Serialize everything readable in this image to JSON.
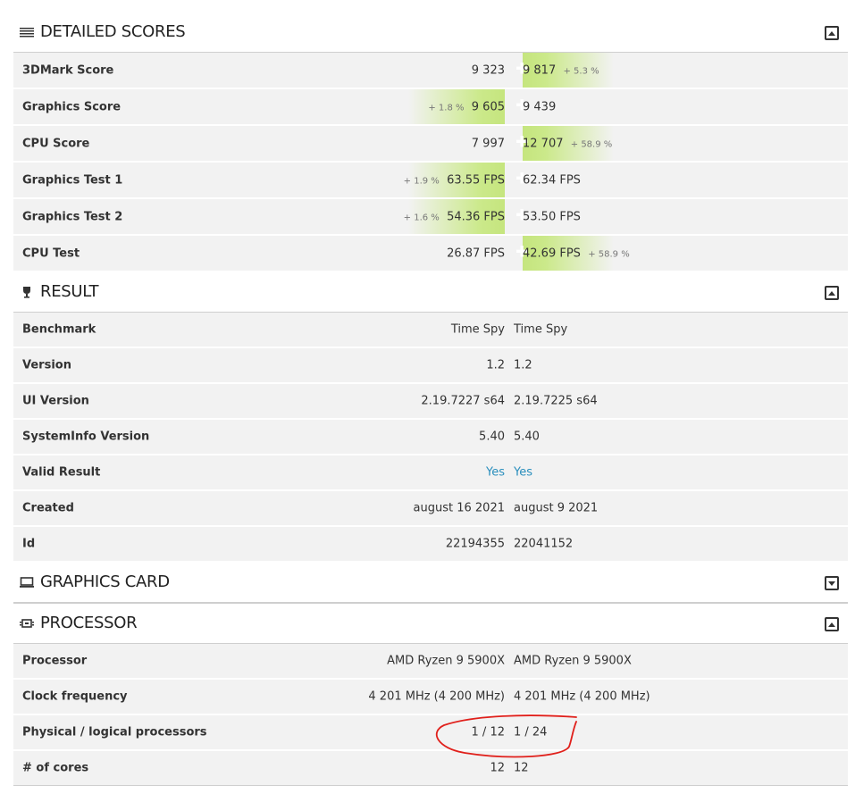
{
  "detailed_scores": {
    "title": "DETAILED SCORES",
    "rows": [
      {
        "label": "3DMark Score",
        "left": "9 323",
        "right": "9 817",
        "right_pct": "+ 5.3 %"
      },
      {
        "label": "Graphics Score",
        "left": "9 605",
        "left_pct": "+ 1.8 %",
        "right": "9 439"
      },
      {
        "label": "CPU Score",
        "left": "7 997",
        "right": "12 707",
        "right_pct": "+ 58.9 %"
      },
      {
        "label": "Graphics Test 1",
        "left": "63.55 FPS",
        "left_pct": "+ 1.9 %",
        "right": "62.34 FPS"
      },
      {
        "label": "Graphics Test 2",
        "left": "54.36 FPS",
        "left_pct": "+ 1.6 %",
        "right": "53.50 FPS"
      },
      {
        "label": "CPU Test",
        "left": "26.87 FPS",
        "right": "42.69 FPS",
        "right_pct": "+ 58.9 %"
      }
    ]
  },
  "result": {
    "title": "RESULT",
    "rows": [
      {
        "label": "Benchmark",
        "left": "Time Spy",
        "right": "Time Spy"
      },
      {
        "label": "Version",
        "left": "1.2",
        "right": "1.2"
      },
      {
        "label": "UI Version",
        "left": "2.19.7227 s64",
        "right": "2.19.7225 s64"
      },
      {
        "label": "SystemInfo Version",
        "left": "5.40",
        "right": "5.40"
      },
      {
        "label": "Valid Result",
        "left": "Yes",
        "right": "Yes"
      },
      {
        "label": "Created",
        "left": "august 16 2021",
        "right": "august 9 2021"
      },
      {
        "label": "Id",
        "left": "22194355",
        "right": "22041152"
      }
    ]
  },
  "graphics_card": {
    "title": "GRAPHICS CARD"
  },
  "processor": {
    "title": "PROCESSOR",
    "rows": [
      {
        "label": "Processor",
        "left": "AMD Ryzen 9 5900X",
        "right": "AMD Ryzen 9 5900X"
      },
      {
        "label": "Clock frequency",
        "left": "4 201 MHz (4 200 MHz)",
        "right": "4 201 MHz (4 200 MHz)"
      },
      {
        "label": "Physical / logical processors",
        "left": "1 / 12",
        "right": "1 / 24"
      },
      {
        "label": "# of cores",
        "left": "12",
        "right": "12"
      }
    ]
  },
  "icons": {
    "detailed_scores": "list-icon",
    "result": "trophy-icon",
    "graphics_card": "monitor-icon",
    "processor": "chip-icon",
    "collapse": "collapse-toggle-icon",
    "expand": "expand-toggle-icon"
  },
  "colors": {
    "winner_highlight": "#c5e57e",
    "valid_yes": "#2b8fbd",
    "annotation": "#e0201b"
  }
}
